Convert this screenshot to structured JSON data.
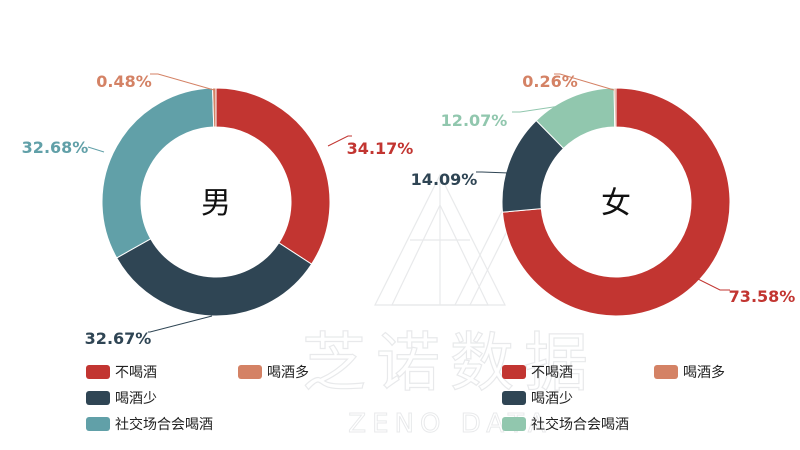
{
  "colors": {
    "不喝酒": "#c23531",
    "喝酒多": "#d48265",
    "喝酒少": "#2f4554",
    "社交场合会喝酒": "#61a0a8",
    "女_社交场合会喝酒": "#91c7ae"
  },
  "chart_data": [
    {
      "type": "pie",
      "center_label": "男",
      "slices": [
        {
          "name": "不喝酒",
          "value": 34.17,
          "label": "34.17%"
        },
        {
          "name": "喝酒少",
          "value": 32.67,
          "label": "32.67%"
        },
        {
          "name": "社交场合会喝酒",
          "value": 32.68,
          "label": "32.68%"
        },
        {
          "name": "喝酒多",
          "value": 0.48,
          "label": "0.48%"
        }
      ],
      "legend": [
        "不喝酒",
        "喝酒多",
        "喝酒少",
        "社交场合会喝酒"
      ]
    },
    {
      "type": "pie",
      "center_label": "女",
      "slices": [
        {
          "name": "不喝酒",
          "value": 73.58,
          "label": "73.58%"
        },
        {
          "name": "喝酒少",
          "value": 14.09,
          "label": "14.09%"
        },
        {
          "name": "社交场合会喝酒",
          "value": 12.07,
          "label": "12.07%"
        },
        {
          "name": "喝酒多",
          "value": 0.26,
          "label": "0.26%"
        }
      ],
      "legend": [
        "不喝酒",
        "喝酒多",
        "喝酒少",
        "社交场合会喝酒"
      ]
    }
  ],
  "watermark": {
    "text": "芝诺数据",
    "subtext": "ZENO DATA"
  }
}
